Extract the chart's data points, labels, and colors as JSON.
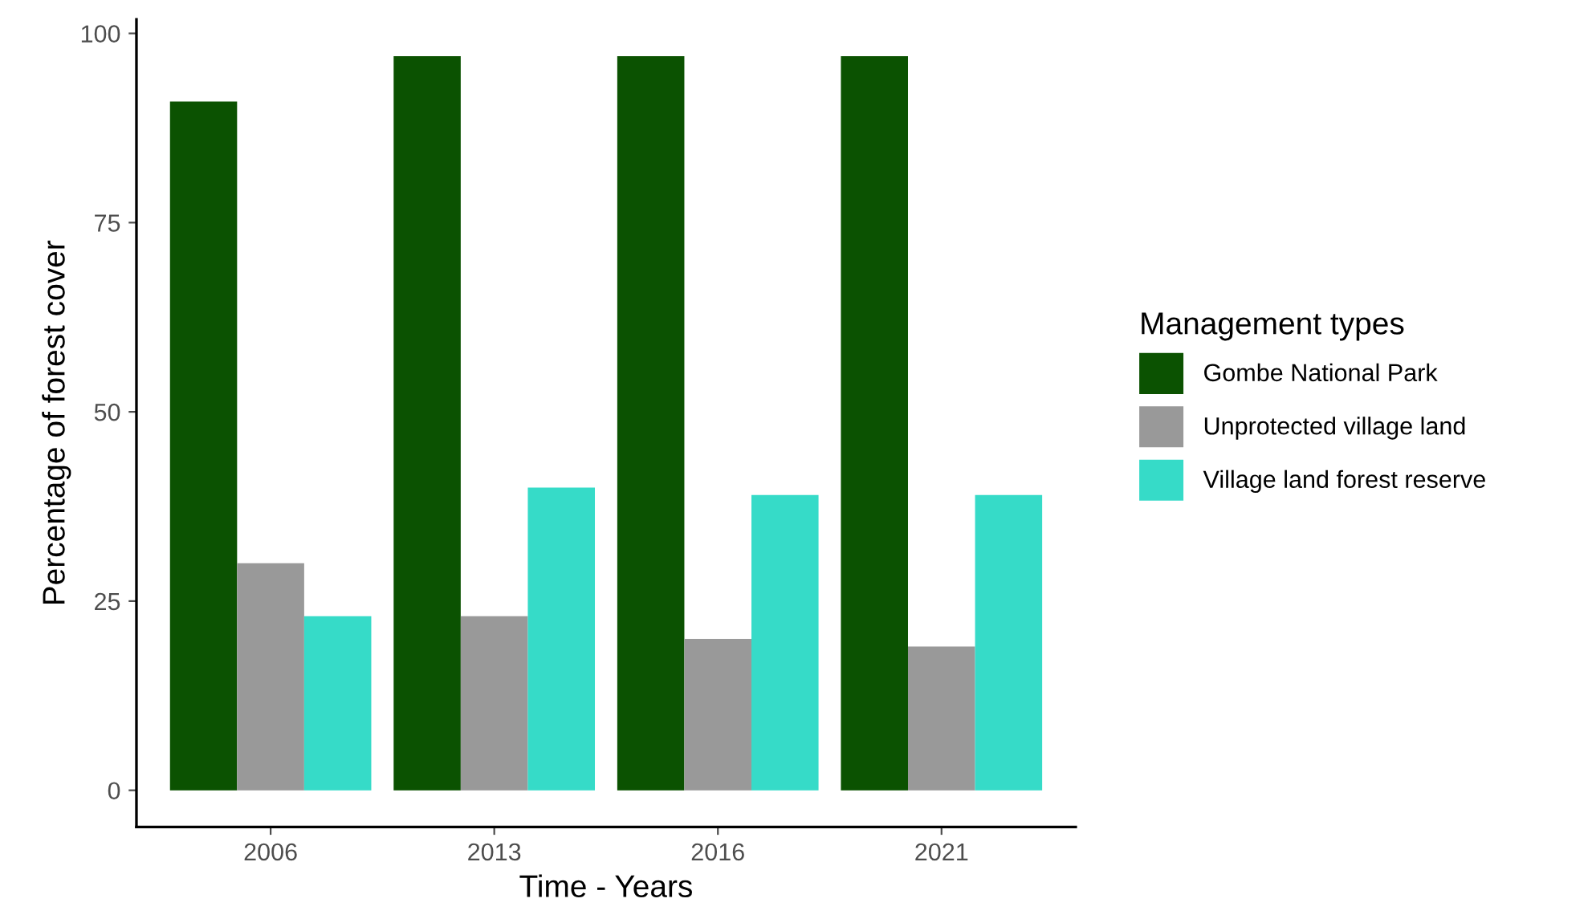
{
  "chart_data": {
    "type": "bar",
    "xlabel": "Time - Years",
    "ylabel": "Percentage of forest cover",
    "legend_title": "Management types",
    "legend": "right",
    "grid": false,
    "categories": [
      "2006",
      "2013",
      "2016",
      "2021"
    ],
    "ylim": [
      -4.85,
      101.85
    ],
    "yticks": [
      0,
      25,
      50,
      75,
      100
    ],
    "series": [
      {
        "name": "Gombe National Park",
        "color": "#0b5201",
        "values": [
          91,
          97,
          97,
          97
        ]
      },
      {
        "name": "Unprotected village land",
        "color": "#999999",
        "values": [
          30,
          23,
          20,
          19
        ]
      },
      {
        "name": "Village land forest reserve",
        "color": "#36dbc8",
        "values": [
          23,
          40,
          39,
          39
        ]
      }
    ]
  }
}
